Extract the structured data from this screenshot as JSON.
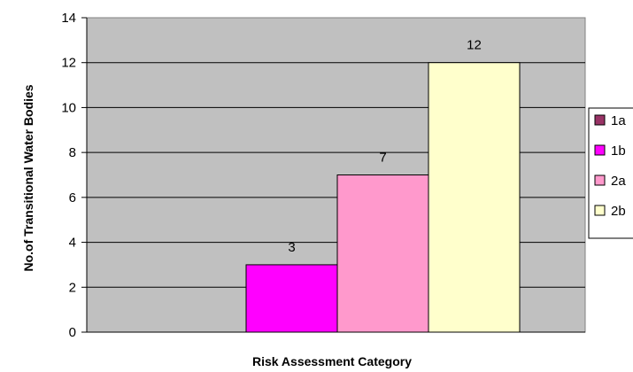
{
  "chart_data": {
    "type": "bar",
    "xlabel": "Risk Assessment Category",
    "ylabel": "No.of Transitional Water Bodies",
    "ylim": [
      0,
      14
    ],
    "yticks": [
      0,
      2,
      4,
      6,
      8,
      10,
      12,
      14
    ],
    "grid": true,
    "legend_position": "right",
    "series": [
      {
        "name": "1a",
        "value": 0,
        "color": "#993366"
      },
      {
        "name": "1b",
        "value": 3,
        "color": "#ff00ff"
      },
      {
        "name": "2a",
        "value": 7,
        "color": "#ff99cc"
      },
      {
        "name": "2b",
        "value": 12,
        "color": "#ffffcc"
      }
    ],
    "data_labels": [
      "",
      "3",
      "7",
      "12"
    ],
    "plot_background": "#c0c0c0"
  }
}
